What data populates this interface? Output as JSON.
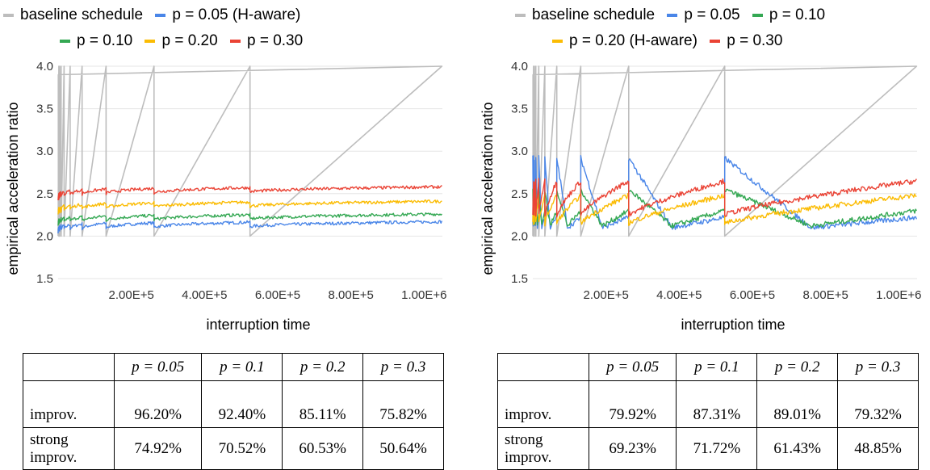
{
  "chart_data": [
    {
      "type": "line",
      "legend": [
        {
          "label": "baseline schedule",
          "color": "#bdbdbd"
        },
        {
          "label": "p = 0.05 (H-aware)",
          "color": "#4a86e8"
        },
        {
          "label": "p = 0.10",
          "color": "#34a853"
        },
        {
          "label": "p = 0.20",
          "color": "#fbbc04"
        },
        {
          "label": "p = 0.30",
          "color": "#ea4335"
        }
      ],
      "legend_placement": "top",
      "ylabel": "empirical acceleration ratio",
      "xlabel": "interruption time",
      "ylim": [
        1.5,
        4.0
      ],
      "xlim": [
        0,
        1050000
      ],
      "y_ticks": [
        "1.5",
        "2.0",
        "2.5",
        "3.0",
        "3.5",
        "4.0"
      ],
      "x_ticks": [
        "2.00E+5",
        "4.00E+5",
        "6.00E+5",
        "8.00E+5",
        "1.00E+6"
      ],
      "grid": "horizontal",
      "series": [
        {
          "name": "baseline schedule",
          "color": "#bdbdbd",
          "kind": "sawtooth",
          "resets": [
            2048,
            4096,
            8192,
            16384,
            32768,
            65536,
            131072,
            262144,
            524288,
            1048576
          ],
          "low": 2.0,
          "high": 4.0
        },
        {
          "name": "p = 0.05 (H-aware)",
          "color": "#4a86e8",
          "kind": "flat",
          "base": 2.05,
          "end": 2.11
        },
        {
          "name": "p = 0.10",
          "color": "#34a853",
          "kind": "flat",
          "base": 2.13,
          "end": 2.2
        },
        {
          "name": "p = 0.20",
          "color": "#fbbc04",
          "kind": "flat",
          "base": 2.27,
          "end": 2.35
        },
        {
          "name": "p = 0.30",
          "color": "#ea4335",
          "kind": "flat",
          "base": 2.44,
          "end": 2.52
        }
      ],
      "table": {
        "columns": [
          "",
          "p = 0.05",
          "p = 0.1",
          "p = 0.2",
          "p = 0.3"
        ],
        "rows": [
          {
            "label": "improv.",
            "label2": "",
            "values": [
              "96.20%",
              "92.40%",
              "85.11%",
              "75.82%"
            ]
          },
          {
            "label": "strong",
            "label2": "improv.",
            "values": [
              "74.92%",
              "70.52%",
              "60.53%",
              "50.64%"
            ]
          }
        ]
      }
    },
    {
      "type": "line",
      "legend": [
        {
          "label": "baseline schedule",
          "color": "#bdbdbd"
        },
        {
          "label": "p = 0.05",
          "color": "#4a86e8"
        },
        {
          "label": "p = 0.10",
          "color": "#34a853"
        },
        {
          "label": "p = 0.20 (H-aware)",
          "color": "#fbbc04"
        },
        {
          "label": "p = 0.30",
          "color": "#ea4335"
        }
      ],
      "legend_placement": "top",
      "ylabel": "empirical acceleration ratio",
      "xlabel": "interruption time",
      "ylim": [
        1.5,
        4.0
      ],
      "xlim": [
        0,
        1050000
      ],
      "y_ticks": [
        "1.5",
        "2.0",
        "2.5",
        "3.0",
        "3.5",
        "4.0"
      ],
      "x_ticks": [
        "2.00E+5",
        "4.00E+5",
        "6.00E+5",
        "8.00E+5",
        "1.00E+6"
      ],
      "grid": "horizontal",
      "series": [
        {
          "name": "baseline schedule",
          "color": "#bdbdbd",
          "kind": "sawtooth",
          "resets": [
            2048,
            4096,
            8192,
            16384,
            32768,
            65536,
            131072,
            262144,
            524288,
            1048576
          ],
          "low": 2.0,
          "high": 4.0
        },
        {
          "name": "p = 0.05",
          "color": "#4a86e8",
          "kind": "wave",
          "peak": 2.92,
          "trough": 2.1,
          "decay": 0.45,
          "fallEnd": 2.22
        },
        {
          "name": "p = 0.10",
          "color": "#34a853",
          "kind": "wave",
          "peak": 2.55,
          "trough": 2.12,
          "decay": 0.45,
          "fallEnd": 2.3
        },
        {
          "name": "p = 0.20 (H-aware)",
          "color": "#fbbc04",
          "kind": "rise",
          "peak": 2.48,
          "trough": 2.15
        },
        {
          "name": "p = 0.30",
          "color": "#ea4335",
          "kind": "rise",
          "peak": 2.65,
          "trough": 2.25
        }
      ],
      "table": {
        "columns": [
          "",
          "p = 0.05",
          "p = 0.1",
          "p = 0.2",
          "p = 0.3"
        ],
        "rows": [
          {
            "label": "improv.",
            "label2": "",
            "values": [
              "79.92%",
              "87.31%",
              "89.01%",
              "79.32%"
            ]
          },
          {
            "label": "strong",
            "label2": "improv.",
            "values": [
              "69.23%",
              "71.72%",
              "61.43%",
              "48.85%"
            ]
          }
        ]
      }
    }
  ]
}
